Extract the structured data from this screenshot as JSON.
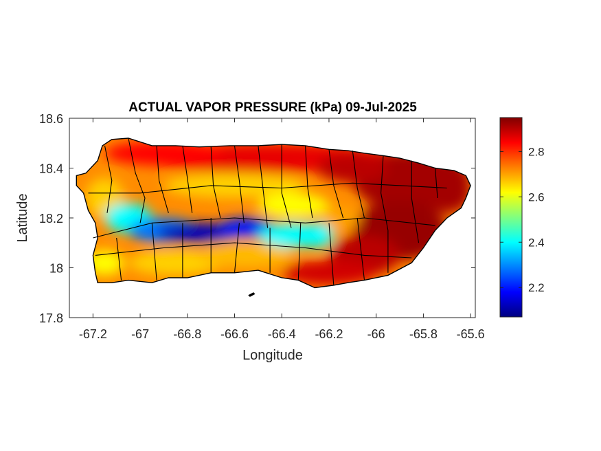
{
  "figure": {
    "title": "ACTUAL VAPOR PRESSURE (kPa) 09-Jul-2025",
    "xlabel": "Longitude",
    "ylabel": "Latitude",
    "background": "#ffffff"
  },
  "map": {
    "region": "Puerto Rico",
    "xlim": [
      -67.3,
      -65.58
    ],
    "ylim": [
      17.8,
      18.6
    ],
    "x_ticks": [
      {
        "value": -67.2,
        "label": "-67.2"
      },
      {
        "value": -67.0,
        "label": "-67"
      },
      {
        "value": -66.8,
        "label": "-66.8"
      },
      {
        "value": -66.6,
        "label": "-66.6"
      },
      {
        "value": -66.4,
        "label": "-66.4"
      },
      {
        "value": -66.2,
        "label": "-66.2"
      },
      {
        "value": -66.0,
        "label": "-66"
      },
      {
        "value": -65.8,
        "label": "-65.8"
      },
      {
        "value": -65.6,
        "label": "-65.6"
      }
    ],
    "y_ticks": [
      {
        "value": 17.8,
        "label": "17.8"
      },
      {
        "value": 18.0,
        "label": "18"
      },
      {
        "value": 18.2,
        "label": "18.2"
      },
      {
        "value": 18.4,
        "label": "18.4"
      },
      {
        "value": 18.6,
        "label": "18.6"
      }
    ],
    "field_summary": {
      "high_regions": [
        "north coast",
        "east"
      ],
      "low_region": "central cordillera"
    },
    "boundary_color": "#000000"
  },
  "colorbar": {
    "colormap": "jet",
    "range": [
      2.07,
      2.95
    ],
    "ticks": [
      {
        "value": 2.2,
        "label": "2.2"
      },
      {
        "value": 2.4,
        "label": "2.4"
      },
      {
        "value": 2.6,
        "label": "2.6"
      },
      {
        "value": 2.8,
        "label": "2.8"
      }
    ]
  },
  "colors": {
    "jet_stops": [
      "#000080",
      "#0000ff",
      "#0080ff",
      "#00ffff",
      "#80ff80",
      "#ffff00",
      "#ff8000",
      "#ff0000",
      "#800000"
    ]
  }
}
